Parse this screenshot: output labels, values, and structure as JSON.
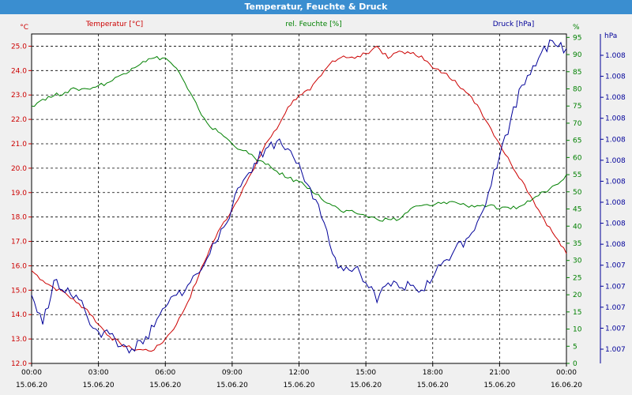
{
  "window": {
    "title": "Temperatur, Feuchte & Druck"
  },
  "colors": {
    "temperature": "#cc0000",
    "humidity": "#008000",
    "pressure": "#000099",
    "frame": "#000000",
    "background": "#ffffff",
    "titlebar": "#3a8ed0"
  },
  "chart_data": {
    "type": "line",
    "title": "Temperatur, Feuchte & Druck",
    "grid": true,
    "x_ticks": [
      {
        "time": "00:00",
        "date": "15.06.20"
      },
      {
        "time": "03:00",
        "date": "15.06.20"
      },
      {
        "time": "06:00",
        "date": "15.06.20"
      },
      {
        "time": "09:00",
        "date": "15.06.20"
      },
      {
        "time": "12:00",
        "date": "15.06.20"
      },
      {
        "time": "15:00",
        "date": "15.06.20"
      },
      {
        "time": "18:00",
        "date": "15.06.20"
      },
      {
        "time": "21:00",
        "date": "15.06.20"
      },
      {
        "time": "00:00",
        "date": "16.06.20"
      }
    ],
    "axes": {
      "temperature": {
        "label": "Temperatur [°C]",
        "unit": "°C",
        "ylim": [
          12,
          25.5
        ],
        "ticks": [
          "12.0",
          "13.0",
          "14.0",
          "15.0",
          "16.0",
          "17.0",
          "18.0",
          "19.0",
          "20.0",
          "21.0",
          "22.0",
          "23.0",
          "24.0",
          "25.0"
        ]
      },
      "humidity": {
        "label": "rel. Feuchte [%]",
        "unit": "%",
        "ylim": [
          0,
          96
        ],
        "ticks": [
          "0",
          "5",
          "10",
          "15",
          "20",
          "25",
          "30",
          "35",
          "40",
          "45",
          "50",
          "55",
          "60",
          "65",
          "70",
          "75",
          "80",
          "85",
          "90",
          "95"
        ]
      },
      "pressure": {
        "label": "Druck [hPa]",
        "unit": "hPa",
        "ticks": [
          "1.007",
          "1.007",
          "1.007",
          "1.007",
          "1.007",
          "1.008",
          "1.008",
          "1.008",
          "1.008",
          "1.008",
          "1.008",
          "1.008",
          "1.008",
          "1.008",
          "1.008"
        ]
      }
    },
    "series": [
      {
        "name": "Temperatur [°C]",
        "axis": "temperature",
        "x": [
          0,
          0.5,
          1,
          1.5,
          2,
          2.5,
          3,
          3.5,
          4,
          4.5,
          5,
          5.5,
          6,
          6.5,
          7,
          7.5,
          8,
          8.5,
          9,
          9.5,
          10,
          10.5,
          11,
          11.5,
          12,
          12.5,
          13,
          13.5,
          14,
          14.5,
          15,
          15.5,
          16,
          16.5,
          17,
          17.5,
          18,
          18.5,
          19,
          19.5,
          20,
          20.5,
          21,
          21.5,
          22,
          22.5,
          23,
          23.5,
          24
        ],
        "values": [
          15.8,
          15.4,
          15.1,
          14.9,
          14.5,
          14.2,
          13.6,
          13.1,
          12.8,
          12.6,
          12.55,
          12.55,
          13.0,
          13.6,
          14.5,
          15.6,
          16.7,
          17.6,
          18.3,
          19.2,
          20.0,
          21.0,
          21.6,
          22.5,
          23.0,
          23.2,
          23.8,
          24.4,
          24.6,
          24.5,
          24.7,
          25.0,
          24.5,
          24.8,
          24.7,
          24.6,
          24.1,
          23.9,
          23.6,
          23.1,
          22.6,
          21.8,
          21.0,
          20.2,
          19.5,
          18.7,
          17.9,
          17.2,
          16.5
        ]
      },
      {
        "name": "rel. Feuchte [%]",
        "axis": "humidity",
        "x": [
          0,
          0.5,
          1,
          1.5,
          2,
          2.5,
          3,
          3.5,
          4,
          4.5,
          5,
          5.5,
          6,
          6.5,
          7,
          7.5,
          8,
          8.5,
          9,
          9.5,
          10,
          10.5,
          11,
          11.5,
          12,
          12.5,
          13,
          13.5,
          14,
          14.5,
          15,
          15.5,
          16,
          16.5,
          17,
          17.5,
          18,
          18.5,
          19,
          19.5,
          20,
          20.5,
          21,
          21.5,
          22,
          22.5,
          23,
          23.5,
          24
        ],
        "values": [
          75,
          77,
          78,
          79,
          80,
          80,
          81,
          82,
          84,
          86,
          88,
          89,
          89,
          86,
          80,
          74,
          69,
          67,
          64,
          62,
          60,
          58,
          56,
          54,
          53,
          51,
          48,
          46,
          44,
          44,
          43,
          42,
          42,
          42,
          45,
          46,
          46,
          47,
          47,
          46,
          46,
          46,
          45,
          45,
          46,
          48,
          50,
          52,
          55
        ]
      },
      {
        "name": "Druck [hPa]",
        "axis": "pressure",
        "x": [
          0,
          0.5,
          1,
          1.5,
          2,
          2.5,
          3,
          3.5,
          4,
          4.5,
          5,
          5.5,
          6,
          6.5,
          7,
          7.5,
          8,
          8.5,
          9,
          9.5,
          10,
          10.5,
          11,
          11.5,
          12,
          12.5,
          13,
          13.5,
          14,
          14.5,
          15,
          15.5,
          16,
          16.5,
          17,
          17.5,
          18,
          18.5,
          19,
          19.5,
          20,
          20.5,
          21,
          21.5,
          22,
          22.5,
          23,
          23.5,
          24
        ],
        "values": [
          14.8,
          13.6,
          15.4,
          14.9,
          14.8,
          13.9,
          13.3,
          13.2,
          12.7,
          12.6,
          12.8,
          13.5,
          14.3,
          14.8,
          15.2,
          15.7,
          16.5,
          17.5,
          18.4,
          19.5,
          20.2,
          20.8,
          21.1,
          20.8,
          20.2,
          19.2,
          18.0,
          16.5,
          15.8,
          15.9,
          15.3,
          14.5,
          15.3,
          15.1,
          15.2,
          15.0,
          15.5,
          16.2,
          16.7,
          17.1,
          17.8,
          19.0,
          20.5,
          22.0,
          23.4,
          24.2,
          25.0,
          25.05,
          24.9
        ]
      }
    ]
  }
}
